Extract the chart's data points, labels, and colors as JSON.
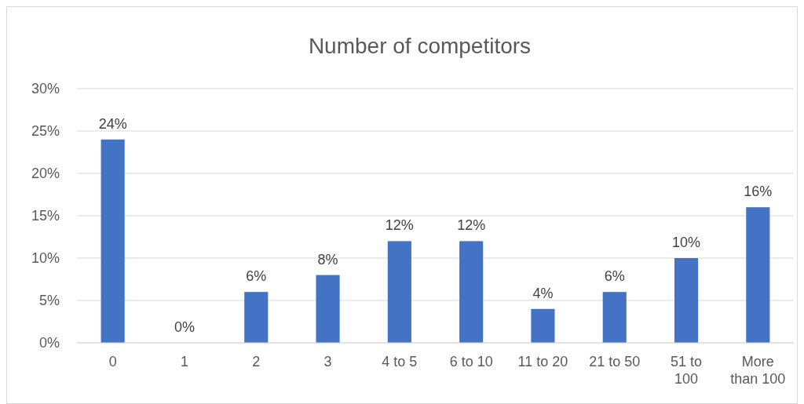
{
  "chart_data": {
    "type": "bar",
    "title": "Number of competitors",
    "categories": [
      "0",
      "1",
      "2",
      "3",
      "4 to 5",
      "6 to 10",
      "11 to 20",
      "21 to 50",
      "51 to 100",
      "More than 100"
    ],
    "values": [
      24,
      0,
      6,
      8,
      12,
      12,
      4,
      6,
      10,
      16
    ],
    "color": "#4472c4",
    "ylim": [
      0,
      30
    ],
    "yticks": [
      {
        "value": 0,
        "label": "0%"
      },
      {
        "value": 5,
        "label": "5%"
      },
      {
        "value": 10,
        "label": "10%"
      },
      {
        "value": 15,
        "label": "15%"
      },
      {
        "value": 20,
        "label": "20%"
      },
      {
        "value": 25,
        "label": "25%"
      },
      {
        "value": 30,
        "label": "30%"
      }
    ],
    "grid": "y",
    "data_labels": true,
    "value_labels": [
      "24%",
      "0%",
      "6%",
      "8%",
      "12%",
      "12%",
      "4%",
      "6%",
      "10%",
      "16%"
    ]
  }
}
